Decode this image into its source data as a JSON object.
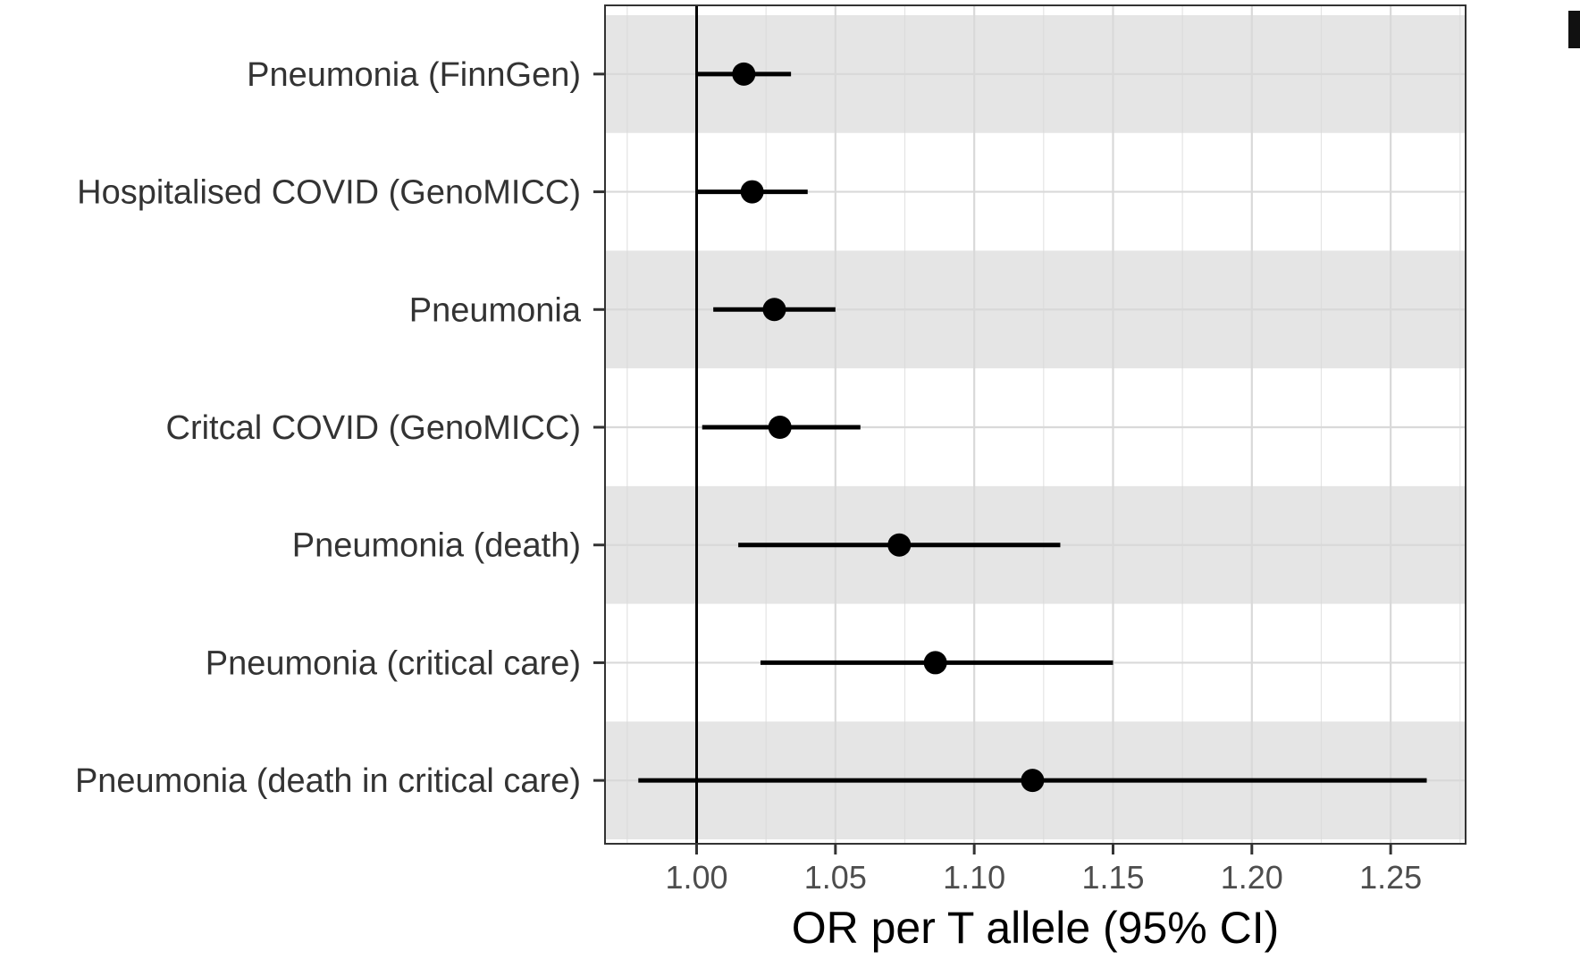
{
  "chart_data": {
    "type": "forest",
    "title": "",
    "xlabel": "OR per T allele (95% CI)",
    "ylabel": "",
    "xlim": [
      0.967,
      1.277
    ],
    "x_ticks": [
      "1.00",
      "1.05",
      "1.10",
      "1.15",
      "1.20",
      "1.25"
    ],
    "x_tick_values": [
      1.0,
      1.05,
      1.1,
      1.15,
      1.2,
      1.25
    ],
    "reference_line": 1.0,
    "grid": true,
    "alternating_row_shading": true,
    "rows": [
      {
        "label": "Pneumonia (FinnGen)",
        "or": 1.017,
        "lower": 1.0,
        "upper": 1.034
      },
      {
        "label": "Hospitalised COVID (GenoMICC)",
        "or": 1.02,
        "lower": 1.0,
        "upper": 1.04
      },
      {
        "label": "Pneumonia",
        "or": 1.028,
        "lower": 1.006,
        "upper": 1.05
      },
      {
        "label": "Critcal COVID (GenoMICC)",
        "or": 1.03,
        "lower": 1.002,
        "upper": 1.059
      },
      {
        "label": "Pneumonia (death)",
        "or": 1.073,
        "lower": 1.015,
        "upper": 1.131
      },
      {
        "label": "Pneumonia (critical care)",
        "or": 1.086,
        "lower": 1.023,
        "upper": 1.15
      },
      {
        "label": "Pneumonia (death in critical care)",
        "or": 1.121,
        "lower": 0.979,
        "upper": 1.263
      }
    ],
    "colors": {
      "shade": "#e5e5e5",
      "grid": "#d9d9d9",
      "mark": "#000000",
      "panel_border": "#333333"
    }
  }
}
